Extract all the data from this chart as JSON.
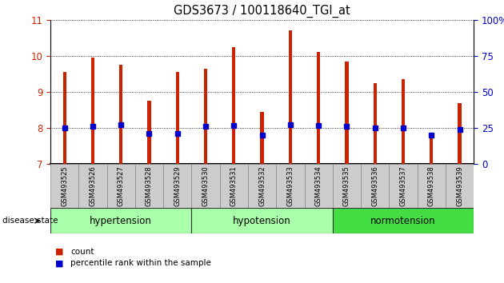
{
  "title": "GDS3673 / 100118640_TGI_at",
  "samples": [
    "GSM493525",
    "GSM493526",
    "GSM493527",
    "GSM493528",
    "GSM493529",
    "GSM493530",
    "GSM493531",
    "GSM493532",
    "GSM493533",
    "GSM493534",
    "GSM493535",
    "GSM493536",
    "GSM493537",
    "GSM493538",
    "GSM493539"
  ],
  "bar_heights": [
    9.55,
    9.95,
    9.75,
    8.75,
    9.55,
    9.65,
    10.25,
    8.45,
    10.7,
    10.1,
    9.85,
    9.25,
    9.35,
    7.85,
    8.7
  ],
  "blue_markers": [
    8.0,
    8.05,
    8.1,
    7.85,
    7.85,
    8.05,
    8.08,
    7.8,
    8.1,
    8.08,
    8.05,
    8.0,
    8.0,
    7.8,
    7.95
  ],
  "ylim": [
    7,
    11
  ],
  "yticks_left": [
    7,
    8,
    9,
    10,
    11
  ],
  "yticks_right": [
    0,
    25,
    50,
    75,
    100
  ],
  "bar_color": "#CC2200",
  "blue_color": "#0000CC",
  "tick_label_color_left": "#CC2200",
  "tick_label_color_right": "#0000CC",
  "grid_color": "#000000",
  "bar_width": 0.12,
  "group_info": [
    {
      "name": "hypertension",
      "start": 0,
      "end": 4,
      "color": "#AAFFAA"
    },
    {
      "name": "hypotension",
      "start": 5,
      "end": 9,
      "color": "#AAFFAA"
    },
    {
      "name": "normotension",
      "start": 10,
      "end": 14,
      "color": "#44DD44"
    }
  ]
}
